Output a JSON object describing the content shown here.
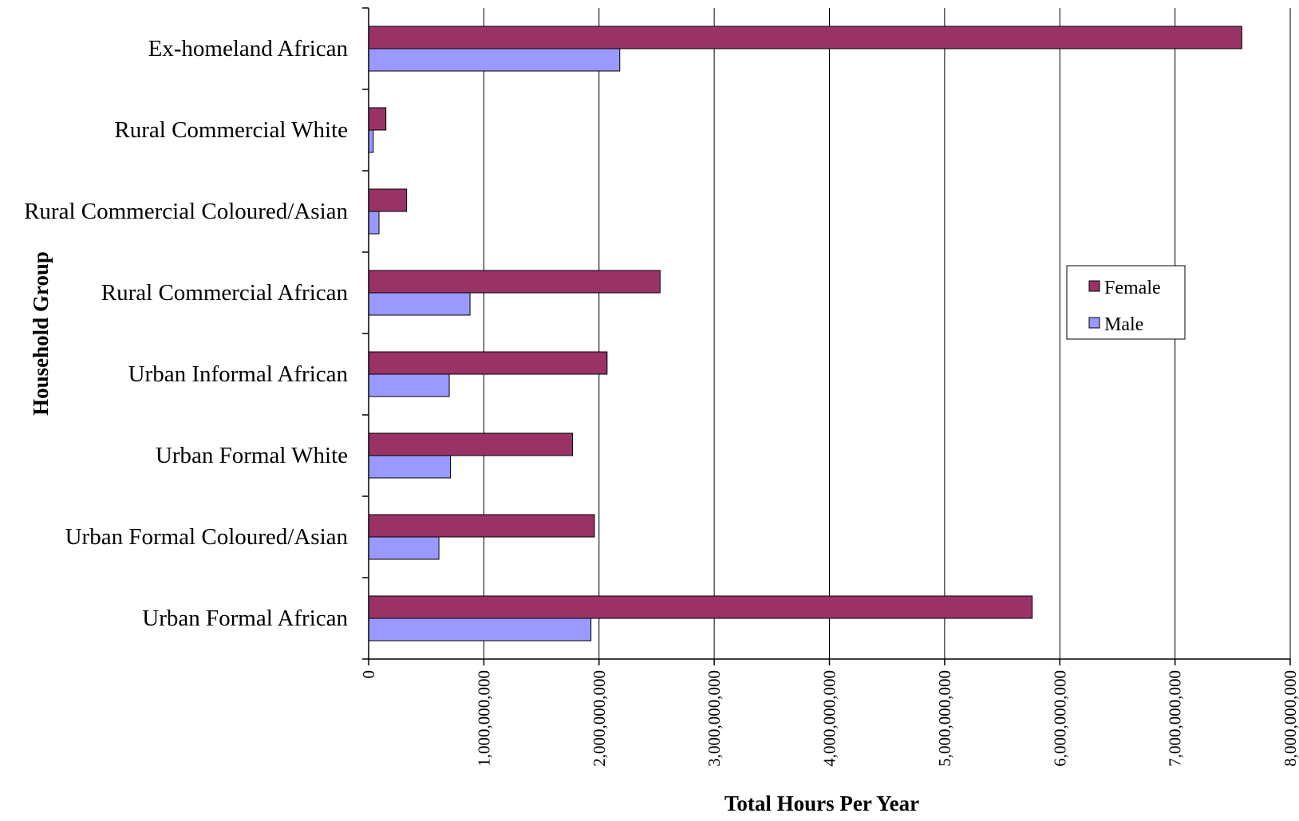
{
  "chart_data": {
    "type": "bar",
    "orientation": "horizontal",
    "categories": [
      "Ex-homeland African",
      "Rural Commercial White",
      "Rural Commercial Coloured/Asian",
      "Rural Commercial African",
      "Urban Informal African",
      "Urban Formal White",
      "Urban Formal Coloured/Asian",
      "Urban Formal African"
    ],
    "series": [
      {
        "name": "Female",
        "color": "#993366",
        "values": [
          7580000000,
          150000000,
          330000000,
          2530000000,
          2070000000,
          1770000000,
          1960000000,
          5760000000
        ]
      },
      {
        "name": "Male",
        "color": "#9999ff",
        "values": [
          2180000000,
          40000000,
          90000000,
          880000000,
          700000000,
          710000000,
          610000000,
          1930000000
        ]
      }
    ],
    "xlabel": "Total Hours Per Year",
    "ylabel": "Household Group",
    "xlim": [
      0,
      8000000000
    ],
    "xticks": [
      0,
      1000000000,
      2000000000,
      3000000000,
      4000000000,
      5000000000,
      6000000000,
      7000000000,
      8000000000
    ],
    "xtick_labels": [
      "0",
      "1,000,000,000",
      "2,000,000,000",
      "3,000,000,000",
      "4,000,000,000",
      "5,000,000,000",
      "6,000,000,000",
      "7,000,000,000",
      "8,000,000,000"
    ],
    "grid": "vertical",
    "legend_position": "right"
  }
}
